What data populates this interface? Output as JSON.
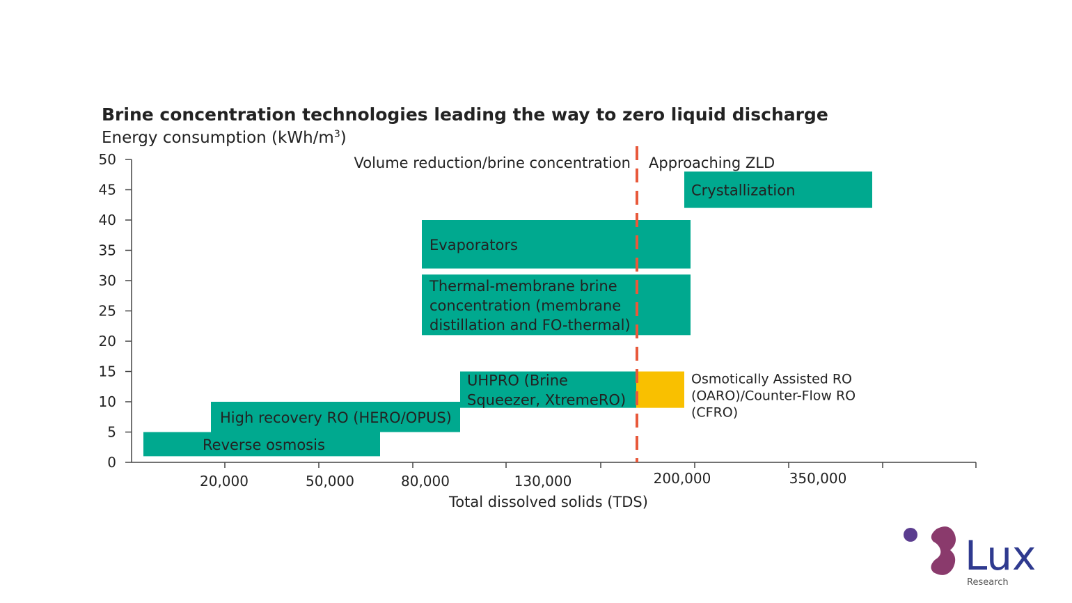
{
  "chart_data": {
    "type": "bar",
    "title": "Brine concentration technologies leading the way to zero liquid discharge",
    "ylabel": "Energy consumption (kWh/m³)",
    "xlabel": "Total dissolved solids (TDS)",
    "ylim": [
      0,
      50
    ],
    "yticks": [
      0,
      5,
      10,
      15,
      20,
      25,
      30,
      35,
      40,
      45,
      50
    ],
    "xtick_labels": [
      "20,000",
      "50,000",
      "80,000",
      "130,000",
      "200,000",
      "350,000"
    ],
    "x_scale": "categorical (non-linear TDS scale)",
    "divider": {
      "style": "dashed vertical line",
      "color": "#e8593b",
      "left_region": "Volume reduction/brine concentration",
      "right_region": "Approaching ZLD"
    },
    "bars": [
      {
        "name": "Reverse osmosis",
        "tds_range": [
          "<20,000",
          "~70,000"
        ],
        "energy_range": [
          1,
          5
        ],
        "color": "#00a98f"
      },
      {
        "name": "High recovery RO (HERO/OPUS)",
        "tds_range": [
          "~20,000",
          "~100,000"
        ],
        "energy_range": [
          5,
          10
        ],
        "color": "#00a98f"
      },
      {
        "name": "UHPRO (Brine Squeezer, XtremeRO)",
        "tds_range": [
          "~100,000",
          "~170,000"
        ],
        "energy_range": [
          9,
          15
        ],
        "color": "#00a98f"
      },
      {
        "name": "Osmotically Assisted RO (OARO)/Counter-Flow RO (CFRO)",
        "tds_range": [
          "~170,000",
          "~200,000"
        ],
        "energy_range": [
          9,
          15
        ],
        "color": "#f9c000",
        "label_lines": [
          "Osmotically Assisted RO",
          "(OARO)/Counter-Flow RO",
          "(CFRO)"
        ]
      },
      {
        "name": "Thermal-membrane brine concentration (membrane distillation and FO-thermal)",
        "tds_range": [
          "~80,000",
          "~200,000"
        ],
        "energy_range": [
          21,
          31
        ],
        "color": "#00a98f",
        "label_lines": [
          "Thermal-membrane brine",
          "concentration (membrane",
          "distillation and FO-thermal)"
        ]
      },
      {
        "name": "Evaporators",
        "tds_range": [
          "~80,000",
          "~200,000"
        ],
        "energy_range": [
          32,
          40
        ],
        "color": "#00a98f"
      },
      {
        "name": "Crystallization",
        "tds_range": [
          "~200,000",
          ">350,000"
        ],
        "energy_range": [
          42,
          48
        ],
        "color": "#00a98f"
      }
    ],
    "grid": false,
    "legend": "none"
  },
  "logo": {
    "text": "Lux",
    "subtext": "Research"
  }
}
